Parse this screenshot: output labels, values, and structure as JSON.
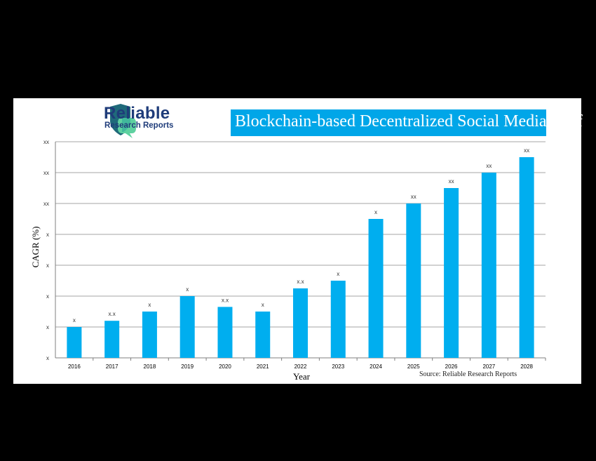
{
  "brand": {
    "line1": "Reliable",
    "line2": "Research Reports"
  },
  "source_note": "Source: Reliable Research Reports",
  "chart_data": {
    "type": "bar",
    "title": "Blockchain-based Decentralized Social Media Platf",
    "xlabel": "Year",
    "ylabel": "CAGR (%)",
    "categories": [
      "2016",
      "2017",
      "2018",
      "2019",
      "2020",
      "2021",
      "2022",
      "2023",
      "2024",
      "2025",
      "2026",
      "2027",
      "2028"
    ],
    "values": [
      1.0,
      1.2,
      1.5,
      2.0,
      1.65,
      1.5,
      2.25,
      2.5,
      4.5,
      5.0,
      5.5,
      6.0,
      6.5
    ],
    "data_labels": [
      "x",
      "x.x",
      "x",
      "x",
      "x.x",
      "x",
      "x.x",
      "x",
      "x",
      "xx",
      "xx",
      "xx",
      "xx"
    ],
    "ytick_labels": [
      "x",
      "x",
      "x",
      "x",
      "x",
      "xx",
      "xx",
      "xx"
    ],
    "ylim": [
      0,
      7
    ],
    "grid": true,
    "bar_color": "#00aeef",
    "grid_color": "#a6a6a6"
  }
}
